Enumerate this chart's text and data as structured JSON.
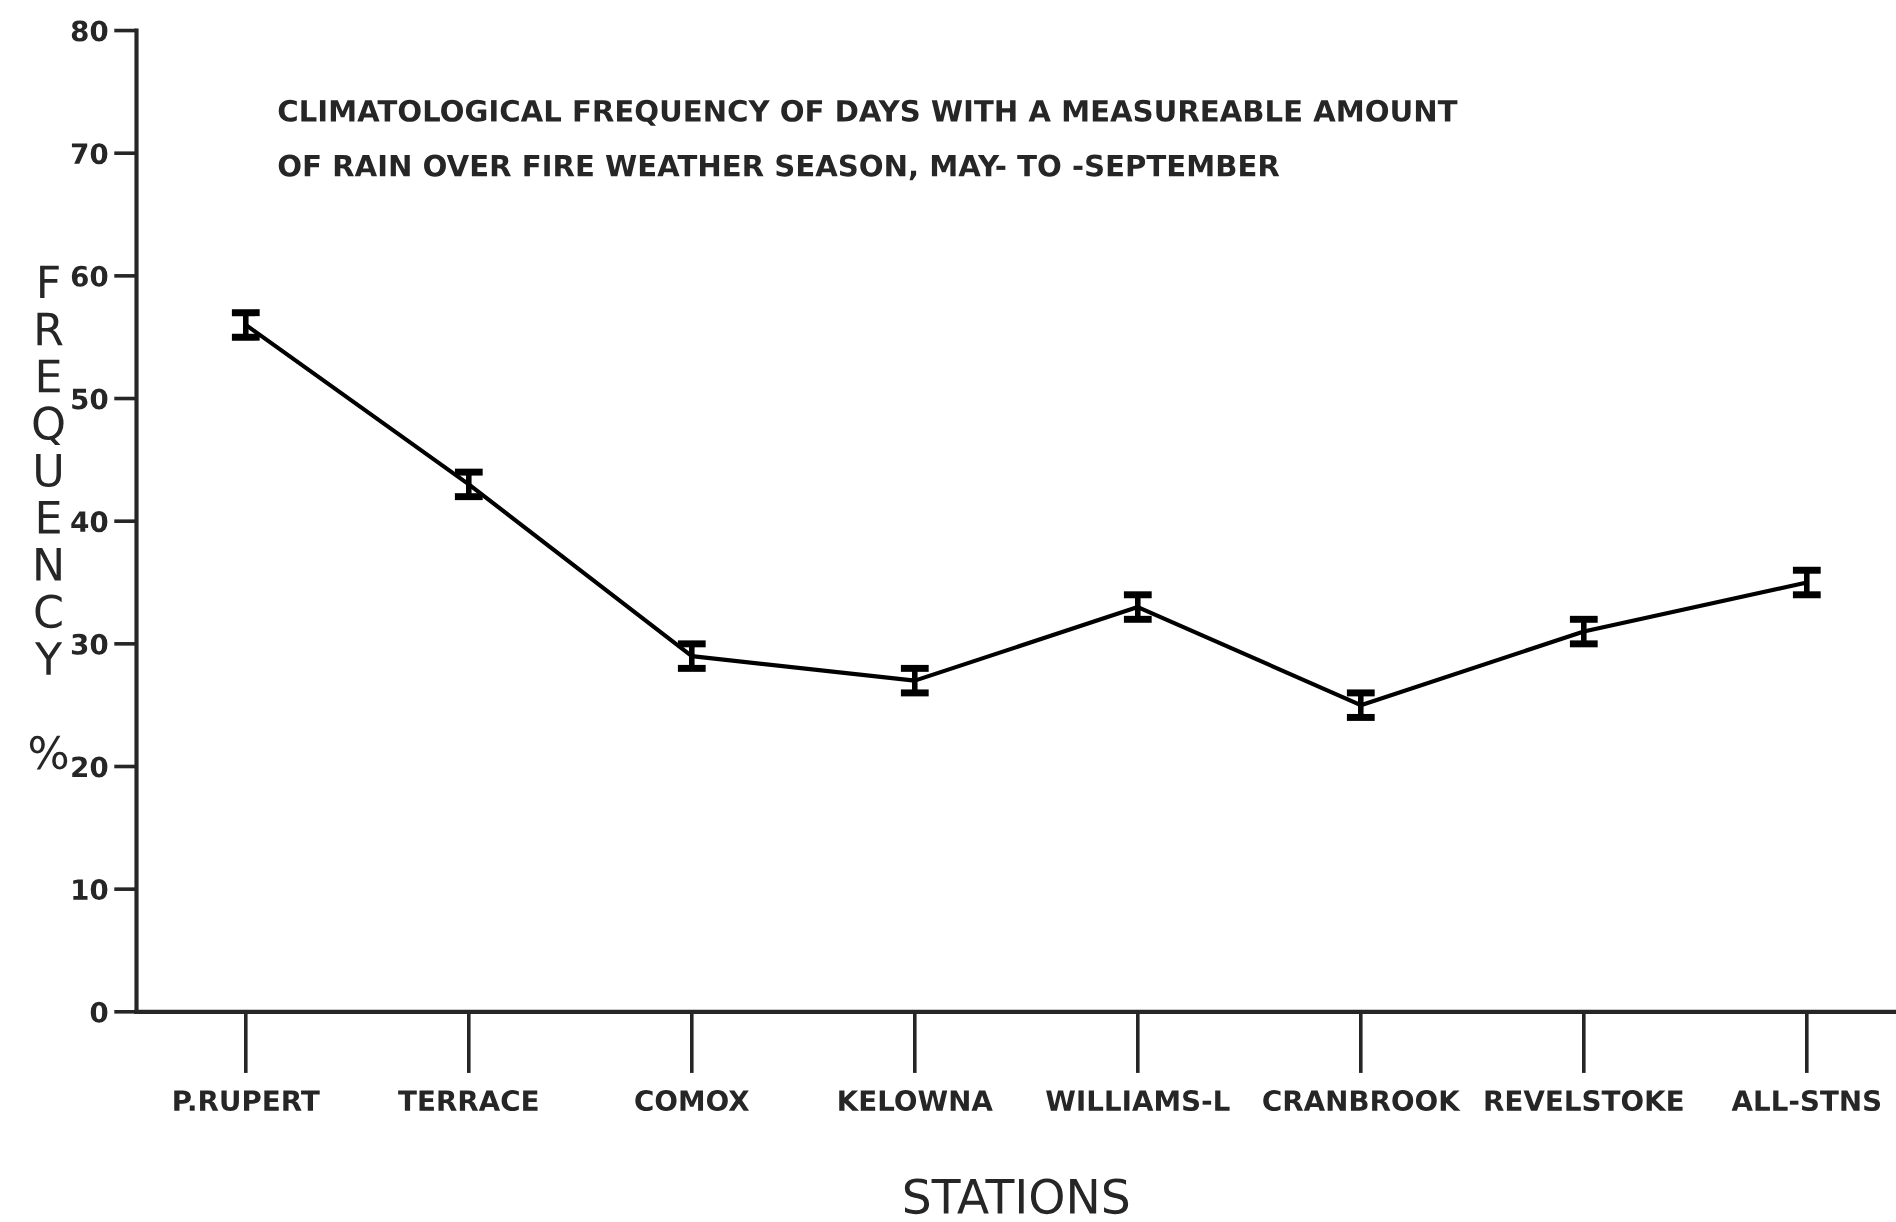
{
  "chart_data": {
    "type": "line",
    "title": "CLIMATOLOGICAL FREQUENCY OF DAYS WITH A MEASUREABLE AMOUNT\nOF RAIN OVER FIRE WEATHER SEASON, MAY- TO -SEPTEMBER",
    "xlabel": "STATIONS",
    "ylabel": "FREQUENCY %",
    "categories": [
      "P.RUPERT",
      "TERRACE",
      "COMOX",
      "KELOWNA",
      "WILLIAMS-L",
      "CRANBROOK",
      "REVELSTOKE",
      "ALL-STNS"
    ],
    "series": [
      {
        "color": "#000000",
        "values": [
          56,
          43,
          29,
          27,
          33,
          25,
          31,
          35
        ],
        "errors": [
          1,
          1,
          1,
          1,
          1,
          1,
          1,
          1
        ]
      }
    ],
    "ylim": [
      0,
      80
    ],
    "yticks": [
      0,
      10,
      20,
      30,
      40,
      50,
      60,
      70,
      80
    ],
    "grid": false,
    "legend": false,
    "marker": "none",
    "line_style": "solid"
  }
}
